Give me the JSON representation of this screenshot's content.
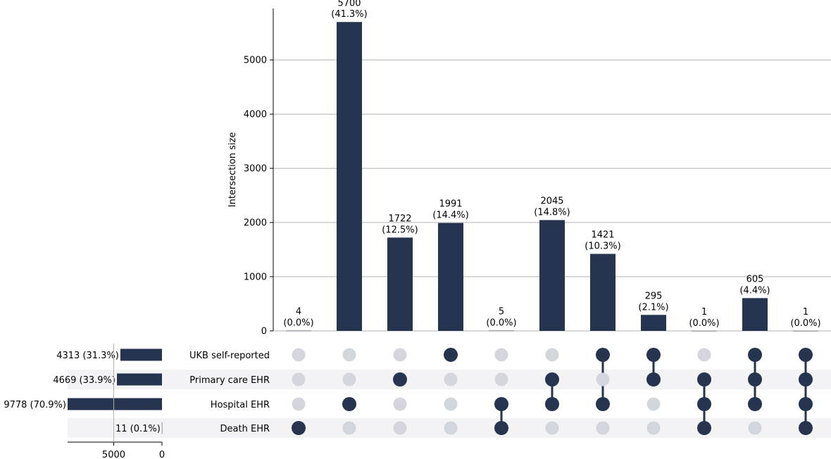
{
  "chart_data": {
    "type": "upset",
    "ylabel": "Intersection size",
    "y_ticks": [
      0,
      1000,
      2000,
      3000,
      4000,
      5000
    ],
    "ylim": [
      0,
      5950
    ],
    "grid": true,
    "sets": [
      {
        "name": "UKB self-reported",
        "size": 4313,
        "label": "4313 (31.3%)"
      },
      {
        "name": "Primary care EHR",
        "size": 4669,
        "label": "4669 (33.9%)"
      },
      {
        "name": "Hospital EHR",
        "size": 9778,
        "label": "9778 (70.9%)"
      },
      {
        "name": "Death EHR",
        "size": 11,
        "label": "11 (0.1%)"
      }
    ],
    "set_size_ticks": [
      5000,
      0
    ],
    "set_size_max": 9778,
    "intersections": [
      {
        "value": 4,
        "count_label": "4",
        "pct_label": "(0.0%)",
        "members": [
          "Death EHR"
        ]
      },
      {
        "value": 5700,
        "count_label": "5700",
        "pct_label": "(41.3%)",
        "members": [
          "Hospital EHR"
        ]
      },
      {
        "value": 1722,
        "count_label": "1722",
        "pct_label": "(12.5%)",
        "members": [
          "Primary care EHR"
        ]
      },
      {
        "value": 1991,
        "count_label": "1991",
        "pct_label": "(14.4%)",
        "members": [
          "UKB self-reported"
        ]
      },
      {
        "value": 5,
        "count_label": "5",
        "pct_label": "(0.0%)",
        "members": [
          "Hospital EHR",
          "Death EHR"
        ]
      },
      {
        "value": 2045,
        "count_label": "2045",
        "pct_label": "(14.8%)",
        "members": [
          "Primary care EHR",
          "Hospital EHR"
        ]
      },
      {
        "value": 1421,
        "count_label": "1421",
        "pct_label": "(10.3%)",
        "members": [
          "UKB self-reported",
          "Hospital EHR"
        ]
      },
      {
        "value": 295,
        "count_label": "295",
        "pct_label": "(2.1%)",
        "members": [
          "UKB self-reported",
          "Primary care EHR"
        ]
      },
      {
        "value": 1,
        "count_label": "1",
        "pct_label": "(0.0%)",
        "members": [
          "Primary care EHR",
          "Hospital EHR",
          "Death EHR"
        ]
      },
      {
        "value": 605,
        "count_label": "605",
        "pct_label": "(4.4%)",
        "members": [
          "UKB self-reported",
          "Primary care EHR",
          "Hospital EHR"
        ]
      },
      {
        "value": 1,
        "count_label": "1",
        "pct_label": "(0.0%)",
        "members": [
          "UKB self-reported",
          "Primary care EHR",
          "Hospital EHR",
          "Death EHR"
        ]
      }
    ],
    "colors": {
      "bar": "#263450",
      "dot_active": "#263450",
      "dot_inactive": "#d3d6dc",
      "stripe": "#f3f3f6",
      "grid": "#b0b0b0"
    }
  }
}
